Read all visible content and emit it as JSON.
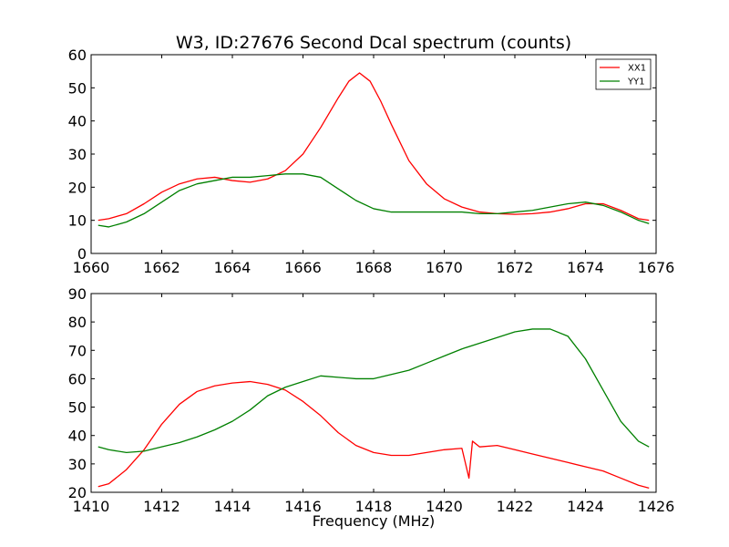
{
  "chart_data": [
    {
      "type": "line",
      "title": "W3, ID:27676 Second Dcal spectrum (counts)",
      "xlabel": "",
      "ylabel": "",
      "xlim": [
        1660,
        1676
      ],
      "ylim": [
        0,
        60
      ],
      "xticks": [
        1660,
        1662,
        1664,
        1666,
        1668,
        1670,
        1672,
        1674,
        1676
      ],
      "yticks": [
        0,
        10,
        20,
        30,
        40,
        50,
        60
      ],
      "grid": false,
      "legend": "top-right",
      "series": [
        {
          "name": "XX1",
          "color": "#ff0000",
          "x": [
            1660.2,
            1660.5,
            1661.0,
            1661.5,
            1662.0,
            1662.5,
            1663.0,
            1663.5,
            1664.0,
            1664.5,
            1665.0,
            1665.5,
            1666.0,
            1666.5,
            1667.0,
            1667.3,
            1667.6,
            1667.9,
            1668.2,
            1668.5,
            1669.0,
            1669.5,
            1670.0,
            1670.5,
            1671.0,
            1671.5,
            1672.0,
            1672.5,
            1673.0,
            1673.5,
            1674.0,
            1674.5,
            1675.0,
            1675.5,
            1675.8
          ],
          "values": [
            10,
            10.5,
            12,
            15,
            18.5,
            21,
            22.5,
            23,
            22,
            21.5,
            22.5,
            25,
            30,
            38,
            47,
            52,
            54.5,
            52,
            46,
            39,
            28,
            21,
            16.5,
            14,
            12.5,
            12,
            11.8,
            12,
            12.5,
            13.5,
            15,
            15,
            13,
            10.5,
            10
          ]
        },
        {
          "name": "YY1",
          "color": "#008000",
          "x": [
            1660.2,
            1660.5,
            1661.0,
            1661.5,
            1662.0,
            1662.5,
            1663.0,
            1663.5,
            1664.0,
            1664.5,
            1665.0,
            1665.5,
            1666.0,
            1666.5,
            1667.0,
            1667.5,
            1668.0,
            1668.5,
            1669.0,
            1669.5,
            1670.0,
            1670.5,
            1671.0,
            1671.5,
            1672.0,
            1672.5,
            1673.0,
            1673.5,
            1674.0,
            1674.5,
            1675.0,
            1675.5,
            1675.8
          ],
          "values": [
            8.5,
            8,
            9.5,
            12,
            15.5,
            19,
            21,
            22,
            23,
            23,
            23.5,
            24,
            24,
            23,
            19.5,
            16,
            13.5,
            12.5,
            12.5,
            12.5,
            12.5,
            12.5,
            12,
            12,
            12.5,
            13,
            14,
            15,
            15.5,
            14.5,
            12.5,
            10,
            9
          ]
        }
      ]
    },
    {
      "type": "line",
      "title": "",
      "xlabel": "Frequency (MHz)",
      "ylabel": "",
      "xlim": [
        1410,
        1426
      ],
      "ylim": [
        20,
        90
      ],
      "xticks": [
        1410,
        1412,
        1414,
        1416,
        1418,
        1420,
        1422,
        1424,
        1426
      ],
      "yticks": [
        20,
        30,
        40,
        50,
        60,
        70,
        80,
        90
      ],
      "grid": false,
      "series": [
        {
          "color": "#ff0000",
          "x": [
            1410.2,
            1410.5,
            1411.0,
            1411.5,
            1412.0,
            1412.5,
            1413.0,
            1413.5,
            1414.0,
            1414.5,
            1415.0,
            1415.5,
            1416.0,
            1416.5,
            1417.0,
            1417.5,
            1418.0,
            1418.5,
            1419.0,
            1419.5,
            1420.0,
            1420.5,
            1420.7,
            1420.8,
            1421.0,
            1421.5,
            1422.0,
            1422.5,
            1423.0,
            1423.5,
            1424.0,
            1424.5,
            1425.0,
            1425.5,
            1425.8
          ],
          "values": [
            22,
            23,
            28,
            35,
            44,
            51,
            55.5,
            57.5,
            58.5,
            59,
            58,
            56,
            52,
            47,
            41,
            36.5,
            34,
            33,
            33,
            34,
            35,
            35.5,
            25,
            38,
            36,
            36.5,
            35,
            33.5,
            32,
            30.5,
            29,
            27.5,
            25,
            22.5,
            21.5
          ]
        },
        {
          "color": "#008000",
          "x": [
            1410.2,
            1410.5,
            1411.0,
            1411.5,
            1412.0,
            1412.5,
            1413.0,
            1413.5,
            1414.0,
            1414.5,
            1415.0,
            1415.5,
            1416.0,
            1416.5,
            1417.0,
            1417.5,
            1418.0,
            1418.5,
            1419.0,
            1419.5,
            1420.0,
            1420.5,
            1421.0,
            1421.5,
            1422.0,
            1422.5,
            1423.0,
            1423.5,
            1424.0,
            1424.5,
            1425.0,
            1425.5,
            1425.8
          ],
          "values": [
            36,
            35,
            34,
            34.5,
            36,
            37.5,
            39.5,
            42,
            45,
            49,
            54,
            57,
            59,
            61,
            60.5,
            60,
            60,
            61.5,
            63,
            65.5,
            68,
            70.5,
            72.5,
            74.5,
            76.5,
            77.5,
            77.5,
            75,
            67,
            56,
            45,
            38,
            36
          ]
        }
      ]
    }
  ]
}
